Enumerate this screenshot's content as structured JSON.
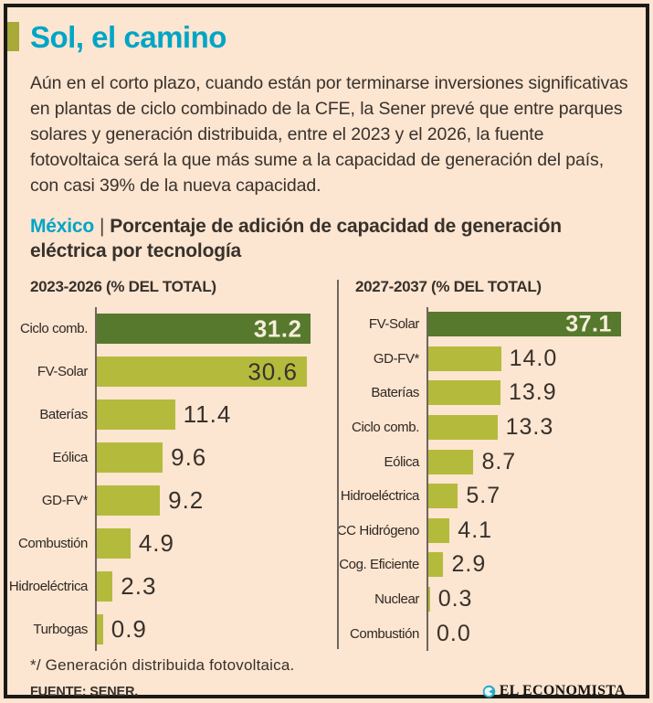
{
  "header": {
    "title": "Sol, el camino"
  },
  "intro": "Aún en el corto plazo, cuando están por terminarse inversiones significativas en plantas de ciclo combinado de la CFE, la Sener prevé que entre parques solares y generación distribuida, entre el 2023 y el 2026, la fuente fotovoltaica será la que más sume a la capacidad de generación del país, con casi 39% de la nueva capacidad.",
  "subtitle": {
    "region": "México",
    "separator": "|",
    "text": "Porcentaje de adición de capacidad de generación eléctrica por tecnología"
  },
  "chart_data": [
    {
      "type": "bar",
      "orientation": "horizontal",
      "title": "2023-2026 (% DEL TOTAL)",
      "categories": [
        "Ciclo comb.",
        "FV-Solar",
        "Baterías",
        "Eólica",
        "GD-FV*",
        "Combustión",
        "Hidroeléctrica",
        "Turbogas"
      ],
      "values": [
        31.2,
        30.6,
        11.4,
        9.6,
        9.2,
        4.9,
        2.3,
        0.9
      ],
      "xlim": [
        0,
        35
      ],
      "grid": false,
      "legend": "none",
      "highlight_index": 0,
      "value_inside_indices": [
        0,
        1
      ],
      "value_decimals": 1
    },
    {
      "type": "bar",
      "orientation": "horizontal",
      "title": "2027-2037 (% DEL TOTAL)",
      "categories": [
        "FV-Solar",
        "GD-FV*",
        "Baterías",
        "Ciclo comb.",
        "Eólica",
        "Hidroeléctrica",
        "CC Hidrógeno",
        "Cog. Eficiente",
        "Nuclear",
        "Combustión"
      ],
      "values": [
        37.1,
        14.0,
        13.9,
        13.3,
        8.7,
        5.7,
        4.1,
        2.9,
        0.3,
        0.0
      ],
      "xlim": [
        0,
        38
      ],
      "grid": false,
      "legend": "none",
      "highlight_index": 0,
      "value_inside_indices": [
        0
      ],
      "value_decimals": 1
    }
  ],
  "footer": {
    "footnote": "*/ Generación distribuida fotovoltaica.",
    "source": "FUENTE: SENER.",
    "brand": "EL ECONOMISTA",
    "brand_icon": "el-economista-globe-icon"
  },
  "colors": {
    "background": "#fce5d1",
    "frame": "#1c1a17",
    "accent_cyan": "#00a5c6",
    "accent_olive": "#a7a939",
    "bar": "#b4bb3c",
    "bar_highlight": "#56792d",
    "bar_value_light": "#f7eeda",
    "ink": "#38312b",
    "axis_line": "#6e665c"
  }
}
